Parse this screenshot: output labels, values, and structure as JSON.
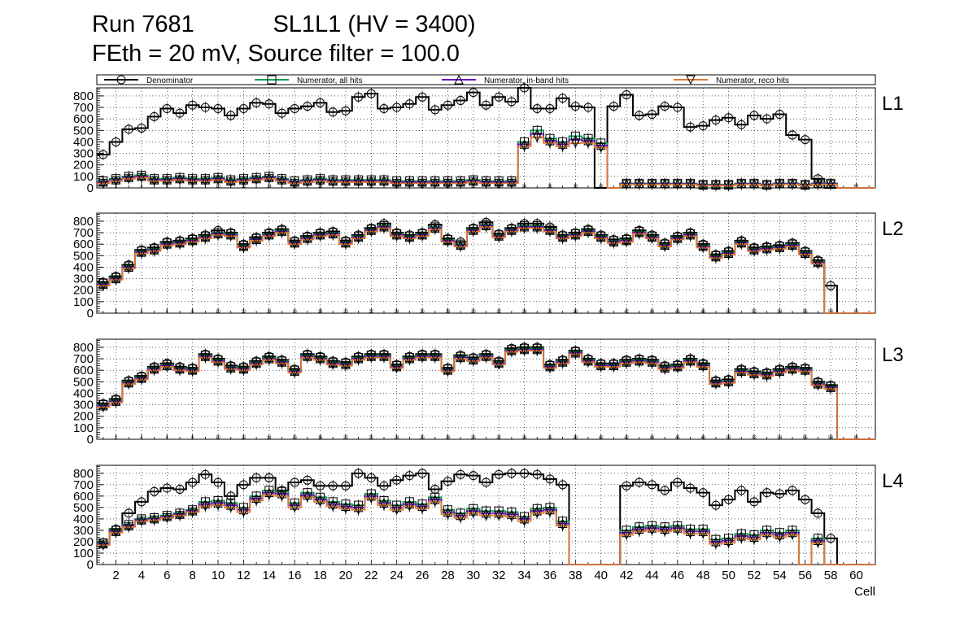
{
  "header": {
    "title_line1": "Run 7681            SL1L1 (HV = 3400)",
    "title_line2": "FEth = 20 mV, Source filter = 100.0"
  },
  "chart_data": {
    "type": "step",
    "xlabel": "Cell",
    "x_ticks": [
      2,
      4,
      6,
      8,
      10,
      12,
      14,
      16,
      18,
      20,
      22,
      24,
      26,
      28,
      30,
      32,
      34,
      36,
      38,
      40,
      42,
      44,
      46,
      48,
      50,
      52,
      54,
      56,
      58,
      60
    ],
    "xlim": [
      0.5,
      61.5
    ],
    "ylim": [
      0,
      870
    ],
    "y_ticks": [
      0,
      100,
      200,
      300,
      400,
      500,
      600,
      700,
      800
    ],
    "grid": true,
    "legend_position": "top",
    "series": [
      {
        "name": "Denominator",
        "color": "#000000",
        "marker": "circle"
      },
      {
        "name": "Numerator, all hits",
        "color": "#00a050",
        "marker": "square"
      },
      {
        "name": "Numerator, in-band hits",
        "color": "#6a0fbf",
        "marker": "triangle-up"
      },
      {
        "name": "Numerator, reco hits",
        "color": "#e07a30",
        "marker": "triangle-down"
      }
    ],
    "panels": [
      {
        "label": "L1",
        "denominator": [
          290,
          400,
          510,
          520,
          620,
          690,
          650,
          720,
          700,
          690,
          630,
          690,
          740,
          730,
          650,
          690,
          710,
          740,
          660,
          670,
          790,
          820,
          690,
          700,
          730,
          790,
          680,
          720,
          760,
          830,
          720,
          790,
          750,
          870,
          690,
          690,
          780,
          710,
          700,
          0,
          710,
          810,
          630,
          640,
          710,
          700,
          530,
          540,
          590,
          610,
          550,
          630,
          600,
          640,
          460,
          420,
          80,
          0,
          0,
          0,
          0
        ],
        "numerator": [
          60,
          80,
          100,
          110,
          80,
          80,
          90,
          80,
          80,
          90,
          70,
          80,
          90,
          100,
          80,
          60,
          70,
          80,
          70,
          70,
          70,
          70,
          70,
          60,
          60,
          60,
          60,
          60,
          60,
          70,
          60,
          60,
          60,
          400,
          500,
          430,
          400,
          450,
          430,
          390,
          0,
          40,
          40,
          40,
          40,
          40,
          40,
          30,
          30,
          30,
          40,
          40,
          30,
          40,
          40,
          30,
          40,
          40,
          0,
          0,
          0
        ],
        "inband": [
          50,
          70,
          90,
          100,
          70,
          70,
          80,
          70,
          70,
          80,
          60,
          70,
          80,
          90,
          70,
          50,
          60,
          70,
          60,
          60,
          60,
          60,
          60,
          50,
          50,
          50,
          50,
          50,
          50,
          60,
          50,
          50,
          50,
          380,
          470,
          410,
          380,
          420,
          410,
          370,
          0,
          35,
          35,
          35,
          35,
          35,
          35,
          25,
          25,
          25,
          35,
          35,
          25,
          35,
          35,
          25,
          35,
          35,
          0,
          0,
          0
        ],
        "reco": [
          40,
          60,
          80,
          90,
          60,
          60,
          70,
          60,
          60,
          70,
          50,
          60,
          70,
          80,
          60,
          40,
          50,
          60,
          50,
          50,
          50,
          50,
          50,
          40,
          40,
          40,
          40,
          40,
          40,
          50,
          40,
          40,
          40,
          360,
          440,
          390,
          360,
          390,
          390,
          350,
          0,
          30,
          30,
          30,
          30,
          30,
          30,
          20,
          20,
          20,
          30,
          30,
          20,
          30,
          30,
          20,
          30,
          30,
          0,
          0,
          0
        ]
      },
      {
        "label": "L2",
        "denominator": [
          270,
          320,
          420,
          550,
          570,
          620,
          630,
          650,
          680,
          720,
          700,
          600,
          660,
          700,
          730,
          630,
          670,
          700,
          710,
          630,
          680,
          740,
          780,
          700,
          680,
          700,
          770,
          650,
          620,
          740,
          790,
          690,
          740,
          780,
          780,
          750,
          680,
          700,
          730,
          680,
          640,
          650,
          720,
          680,
          610,
          670,
          700,
          600,
          510,
          540,
          630,
          570,
          580,
          590,
          610,
          540,
          460,
          240,
          0,
          0,
          0
        ],
        "numerator": [
          260,
          310,
          410,
          540,
          560,
          610,
          620,
          640,
          670,
          700,
          690,
          590,
          650,
          690,
          720,
          620,
          660,
          690,
          700,
          620,
          670,
          730,
          760,
          690,
          670,
          690,
          750,
          640,
          600,
          730,
          770,
          680,
          730,
          760,
          760,
          730,
          670,
          690,
          720,
          670,
          630,
          640,
          710,
          670,
          600,
          660,
          690,
          590,
          500,
          530,
          620,
          560,
          570,
          580,
          600,
          530,
          450,
          0,
          0,
          0,
          0
        ],
        "inband": [
          250,
          300,
          400,
          530,
          550,
          600,
          610,
          630,
          660,
          690,
          680,
          580,
          640,
          680,
          710,
          610,
          650,
          680,
          690,
          610,
          660,
          720,
          750,
          680,
          660,
          680,
          740,
          630,
          590,
          720,
          760,
          670,
          720,
          750,
          750,
          720,
          660,
          680,
          710,
          660,
          620,
          630,
          700,
          660,
          590,
          650,
          680,
          580,
          490,
          520,
          610,
          550,
          560,
          570,
          590,
          520,
          440,
          0,
          0,
          0,
          0
        ],
        "reco": [
          240,
          290,
          390,
          520,
          540,
          590,
          600,
          620,
          650,
          680,
          670,
          570,
          630,
          670,
          700,
          600,
          640,
          670,
          680,
          600,
          650,
          710,
          740,
          670,
          650,
          670,
          730,
          620,
          580,
          710,
          750,
          660,
          710,
          740,
          740,
          710,
          650,
          670,
          700,
          650,
          610,
          620,
          690,
          650,
          580,
          640,
          670,
          570,
          480,
          510,
          600,
          540,
          550,
          560,
          580,
          510,
          430,
          0,
          0,
          0,
          0
        ]
      },
      {
        "label": "L3",
        "denominator": [
          310,
          350,
          510,
          550,
          630,
          660,
          630,
          620,
          740,
          700,
          640,
          630,
          680,
          720,
          690,
          610,
          740,
          720,
          680,
          670,
          720,
          740,
          740,
          650,
          720,
          740,
          740,
          620,
          730,
          710,
          740,
          680,
          790,
          800,
          800,
          650,
          690,
          770,
          700,
          660,
          660,
          690,
          700,
          690,
          640,
          650,
          700,
          660,
          510,
          520,
          610,
          590,
          580,
          610,
          630,
          620,
          500,
          470,
          0,
          0,
          0
        ],
        "numerator": [
          300,
          340,
          500,
          540,
          620,
          650,
          620,
          610,
          730,
          690,
          630,
          620,
          670,
          710,
          680,
          600,
          730,
          710,
          670,
          660,
          710,
          730,
          730,
          640,
          710,
          730,
          730,
          610,
          720,
          700,
          730,
          670,
          780,
          790,
          790,
          640,
          680,
          760,
          690,
          650,
          650,
          680,
          690,
          680,
          630,
          640,
          690,
          650,
          500,
          510,
          600,
          580,
          570,
          600,
          620,
          610,
          490,
          460,
          0,
          0,
          0
        ],
        "inband": [
          290,
          330,
          490,
          530,
          610,
          640,
          610,
          600,
          720,
          680,
          620,
          610,
          660,
          700,
          670,
          590,
          720,
          700,
          660,
          650,
          700,
          720,
          720,
          630,
          700,
          720,
          720,
          600,
          710,
          690,
          720,
          660,
          770,
          780,
          780,
          630,
          670,
          750,
          680,
          640,
          640,
          670,
          680,
          670,
          620,
          630,
          680,
          640,
          490,
          500,
          590,
          570,
          560,
          590,
          610,
          600,
          480,
          450,
          0,
          0,
          0
        ],
        "reco": [
          280,
          320,
          480,
          520,
          600,
          630,
          600,
          590,
          710,
          670,
          610,
          600,
          650,
          690,
          660,
          580,
          710,
          690,
          650,
          640,
          690,
          710,
          710,
          620,
          690,
          710,
          710,
          590,
          700,
          680,
          710,
          650,
          760,
          770,
          770,
          620,
          660,
          740,
          670,
          630,
          630,
          660,
          670,
          660,
          610,
          620,
          670,
          630,
          480,
          490,
          580,
          560,
          550,
          580,
          600,
          590,
          470,
          440,
          0,
          0,
          0
        ]
      },
      {
        "label": "L4",
        "denominator": [
          190,
          310,
          450,
          550,
          640,
          670,
          660,
          720,
          790,
          720,
          600,
          700,
          760,
          760,
          650,
          720,
          740,
          690,
          690,
          690,
          800,
          760,
          690,
          740,
          780,
          800,
          660,
          730,
          790,
          780,
          720,
          790,
          800,
          800,
          790,
          750,
          700,
          0,
          0,
          0,
          0,
          690,
          720,
          700,
          650,
          720,
          670,
          630,
          520,
          570,
          650,
          550,
          630,
          620,
          650,
          570,
          450,
          230,
          0,
          0,
          0
        ],
        "numerator": [
          190,
          300,
          350,
          400,
          410,
          430,
          450,
          480,
          550,
          560,
          540,
          500,
          600,
          650,
          640,
          540,
          630,
          590,
          550,
          530,
          520,
          620,
          560,
          520,
          550,
          530,
          590,
          480,
          450,
          490,
          470,
          470,
          460,
          420,
          490,
          500,
          380,
          0,
          0,
          0,
          0,
          300,
          330,
          340,
          330,
          340,
          310,
          310,
          220,
          230,
          270,
          260,
          300,
          280,
          300,
          0,
          230,
          0,
          0,
          0,
          0
        ],
        "inband": [
          180,
          290,
          340,
          390,
          400,
          420,
          440,
          470,
          530,
          540,
          520,
          480,
          580,
          630,
          620,
          520,
          610,
          570,
          530,
          510,
          500,
          600,
          540,
          500,
          530,
          510,
          570,
          460,
          430,
          470,
          450,
          450,
          440,
          400,
          470,
          480,
          360,
          0,
          0,
          0,
          0,
          280,
          310,
          320,
          310,
          320,
          290,
          290,
          200,
          210,
          250,
          240,
          280,
          260,
          280,
          0,
          210,
          0,
          0,
          0,
          0
        ],
        "reco": [
          170,
          280,
          330,
          380,
          390,
          410,
          430,
          460,
          510,
          520,
          500,
          460,
          560,
          610,
          600,
          500,
          590,
          550,
          510,
          490,
          480,
          580,
          520,
          480,
          510,
          490,
          550,
          440,
          410,
          450,
          430,
          430,
          420,
          380,
          450,
          460,
          340,
          0,
          0,
          0,
          0,
          260,
          290,
          300,
          290,
          300,
          270,
          270,
          180,
          190,
          230,
          220,
          260,
          240,
          260,
          0,
          190,
          0,
          0,
          0,
          0
        ]
      }
    ]
  }
}
